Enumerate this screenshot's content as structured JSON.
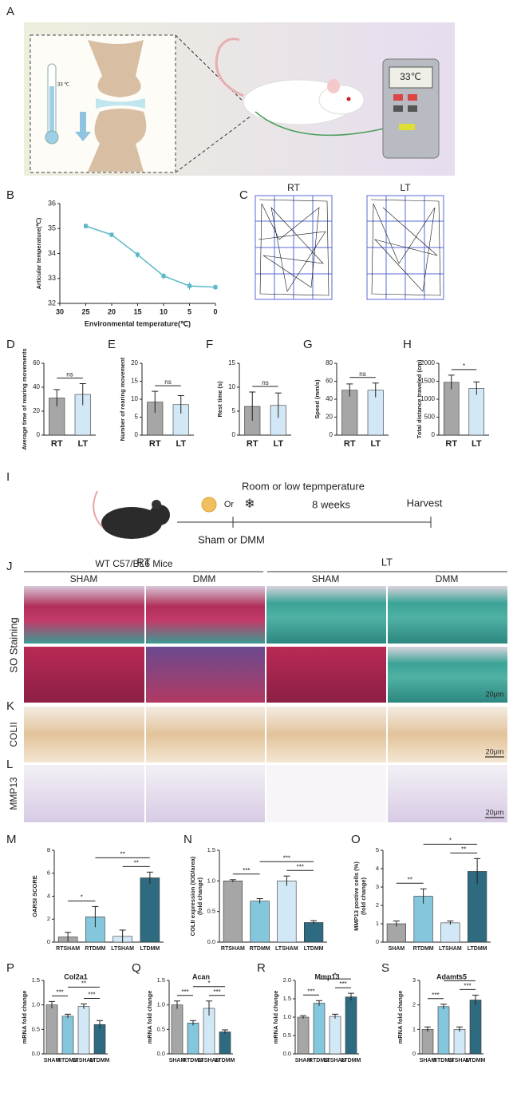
{
  "panel_labels": [
    "A",
    "B",
    "C",
    "D",
    "E",
    "F",
    "G",
    "H",
    "I",
    "J",
    "K",
    "L",
    "M",
    "N",
    "O",
    "P",
    "Q",
    "R",
    "S"
  ],
  "schematic": {
    "thermometer_reading": "33 ℃",
    "device_reading": "33℃"
  },
  "open_field": {
    "groups": [
      "RT",
      "LT"
    ]
  },
  "timeline": {
    "condition": "Room or low tepmperature",
    "or": "Or",
    "duration": "8 weeks",
    "endpoint": "Harvest",
    "surgery": "Sham or DMM",
    "mice": "WT C57/BL6 Mice"
  },
  "histology": {
    "groups": [
      "RT",
      "LT"
    ],
    "treatments": [
      "SHAM",
      "DMM",
      "SHAM",
      "DMM"
    ],
    "rows": [
      "SO Staining",
      "COLII",
      "MMP13"
    ],
    "scale_bar": "20μm"
  },
  "chart_data": [
    {
      "type": "line",
      "xlabel": "Environmental temperature(℃)",
      "ylabel": "Articular temperature(℃)",
      "x": [
        25,
        20,
        15,
        10,
        5,
        0
      ],
      "values": [
        35.1,
        34.75,
        33.95,
        33.1,
        32.7,
        32.65
      ],
      "errors": [
        0.1,
        0.1,
        0.12,
        0.12,
        0.15,
        0.1
      ],
      "color": "#5bb8c9",
      "xlim": [
        30,
        0
      ],
      "xticks": [
        30,
        25,
        20,
        15,
        10,
        5,
        0
      ],
      "ylim": [
        32,
        36
      ],
      "yticks": [
        32,
        33,
        34,
        35,
        36
      ]
    },
    {
      "type": "bar",
      "ylabel": "Average time of rearing movements",
      "categories": [
        "RT",
        "LT"
      ],
      "values": [
        31,
        34
      ],
      "errors": [
        7,
        9
      ],
      "colors": [
        "#a6a6a6",
        "#d3e8f6"
      ],
      "ylim": [
        0,
        60
      ],
      "yticks": [
        0,
        20,
        40,
        60
      ],
      "annotations": [
        {
          "label": "ns",
          "between": [
            "RT",
            "LT"
          ]
        }
      ]
    },
    {
      "type": "bar",
      "ylabel": "Number of rearing movement",
      "categories": [
        "RT",
        "LT"
      ],
      "values": [
        9.2,
        8.5
      ],
      "errors": [
        3,
        2.5
      ],
      "colors": [
        "#a6a6a6",
        "#d3e8f6"
      ],
      "ylim": [
        0,
        20
      ],
      "yticks": [
        0,
        5,
        10,
        15,
        20
      ],
      "annotations": [
        {
          "label": "ns",
          "between": [
            "RT",
            "LT"
          ]
        }
      ]
    },
    {
      "type": "bar",
      "ylabel": "Rest time (s)",
      "categories": [
        "RT",
        "LT"
      ],
      "values": [
        6,
        6.2
      ],
      "errors": [
        3,
        2.6
      ],
      "colors": [
        "#a6a6a6",
        "#d3e8f6"
      ],
      "ylim": [
        0,
        15
      ],
      "yticks": [
        0,
        5,
        10,
        15
      ],
      "annotations": [
        {
          "label": "ns",
          "between": [
            "RT",
            "LT"
          ]
        }
      ]
    },
    {
      "type": "bar",
      "ylabel": "Speed (mm/s)",
      "categories": [
        "RT",
        "LT"
      ],
      "values": [
        50,
        50
      ],
      "errors": [
        7,
        8
      ],
      "colors": [
        "#a6a6a6",
        "#d3e8f6"
      ],
      "ylim": [
        0,
        80
      ],
      "yticks": [
        0,
        20,
        40,
        60,
        80
      ],
      "annotations": [
        {
          "label": "ns",
          "between": [
            "RT",
            "LT"
          ]
        }
      ]
    },
    {
      "type": "bar",
      "ylabel": "Total distance traveled (cm)",
      "categories": [
        "RT",
        "LT"
      ],
      "values": [
        1470,
        1300
      ],
      "errors": [
        200,
        180
      ],
      "colors": [
        "#a6a6a6",
        "#d3e8f6"
      ],
      "ylim": [
        0,
        2000
      ],
      "yticks": [
        0,
        500,
        1000,
        1500,
        2000
      ],
      "annotations": [
        {
          "label": "*",
          "between": [
            "RT",
            "LT"
          ]
        }
      ]
    },
    {
      "type": "bar",
      "ylabel": "OARSI SCORE",
      "categories": [
        "RTSHAM",
        "RTDMM",
        "LTSHAM",
        "LTDMM"
      ],
      "values": [
        0.45,
        2.2,
        0.5,
        5.6
      ],
      "errors": [
        0.4,
        0.9,
        0.55,
        0.5
      ],
      "colors": [
        "#a6a6a6",
        "#84c6dc",
        "#d3e8f6",
        "#2f6b80"
      ],
      "ylim": [
        0,
        8
      ],
      "yticks": [
        0,
        2,
        4,
        6,
        8
      ],
      "annotations": [
        {
          "label": "*",
          "between": [
            "RTSHAM",
            "RTDMM"
          ]
        },
        {
          "label": "**",
          "between": [
            "LTSHAM",
            "LTDMM"
          ]
        },
        {
          "label": "**",
          "between": [
            "RTDMM",
            "LTDMM"
          ]
        }
      ]
    },
    {
      "type": "bar",
      "ylabel": [
        "COLII expression (IOD/area)",
        "(fold change)"
      ],
      "categories": [
        "RTSHAM",
        "RTDMM",
        "LTSHAM",
        "LTDMM"
      ],
      "values": [
        1.0,
        0.67,
        1.0,
        0.32
      ],
      "errors": [
        0.02,
        0.04,
        0.08,
        0.03
      ],
      "colors": [
        "#a6a6a6",
        "#84c6dc",
        "#d3e8f6",
        "#2f6b80"
      ],
      "ylim": [
        0,
        1.5
      ],
      "yticks": [
        {
          "value": 0,
          "label": "0.0"
        },
        {
          "value": 0.5,
          "label": "0.5"
        },
        {
          "value": 1,
          "label": "1.0"
        },
        {
          "value": 1.5,
          "label": "1.5"
        }
      ],
      "annotations": [
        {
          "label": "***",
          "between": [
            "RTSHAM",
            "RTDMM"
          ]
        },
        {
          "label": "***",
          "between": [
            "LTSHAM",
            "LTDMM"
          ]
        },
        {
          "label": "***",
          "between": [
            "RTDMM",
            "LTDMM"
          ]
        }
      ]
    },
    {
      "type": "bar",
      "ylabel": [
        "MMP13 postive cells (%)",
        "(fold change)"
      ],
      "categories": [
        "SHAM",
        "RTDMM",
        "LTSHAM",
        "LTDMM"
      ],
      "values": [
        1.0,
        2.5,
        1.05,
        3.85
      ],
      "errors": [
        0.15,
        0.4,
        0.1,
        0.7
      ],
      "colors": [
        "#a6a6a6",
        "#84c6dc",
        "#d3e8f6",
        "#2f6b80"
      ],
      "ylim": [
        0,
        5
      ],
      "yticks": [
        0,
        1,
        2,
        3,
        4,
        5
      ],
      "annotations": [
        {
          "label": "**",
          "between": [
            "SHAM",
            "RTDMM"
          ]
        },
        {
          "label": "**",
          "between": [
            "LTSHAM",
            "LTDMM"
          ]
        },
        {
          "label": "*",
          "between": [
            "RTDMM",
            "LTDMM"
          ]
        }
      ]
    },
    {
      "type": "bar",
      "title": "Col2a1",
      "ylabel": "mRNA fold change",
      "categories": [
        "SHAM",
        "RTDMM",
        "LTSHAM",
        "LTDMM"
      ],
      "values": [
        1.0,
        0.77,
        0.97,
        0.6
      ],
      "errors": [
        0.07,
        0.04,
        0.05,
        0.08
      ],
      "colors": [
        "#a6a6a6",
        "#84c6dc",
        "#d3e8f6",
        "#2f6b80"
      ],
      "ylim": [
        0,
        1.5
      ],
      "yticks": [
        {
          "value": 0,
          "label": "0.0"
        },
        {
          "value": 0.5,
          "label": "0.5"
        },
        {
          "value": 1,
          "label": "1.0"
        },
        {
          "value": 1.5,
          "label": "1.5"
        }
      ],
      "annotations": [
        {
          "label": "***",
          "between": [
            "SHAM",
            "RTDMM"
          ]
        },
        {
          "label": "***",
          "between": [
            "LTSHAM",
            "LTDMM"
          ]
        },
        {
          "label": "**",
          "between": [
            "RTDMM",
            "LTDMM"
          ]
        }
      ]
    },
    {
      "type": "bar",
      "title": "Acan",
      "ylabel": "mRNA fold change",
      "categories": [
        "SHAM",
        "RTDMM",
        "LTSHAM",
        "LTDMM"
      ],
      "values": [
        1.0,
        0.63,
        0.93,
        0.45
      ],
      "errors": [
        0.08,
        0.05,
        0.15,
        0.04
      ],
      "colors": [
        "#a6a6a6",
        "#84c6dc",
        "#d3e8f6",
        "#2f6b80"
      ],
      "ylim": [
        0,
        1.5
      ],
      "yticks": [
        {
          "value": 0,
          "label": "0.0"
        },
        {
          "value": 0.5,
          "label": "0.5"
        },
        {
          "value": 1,
          "label": "1.0"
        },
        {
          "value": 1.5,
          "label": "1.5"
        }
      ],
      "annotations": [
        {
          "label": "***",
          "between": [
            "SHAM",
            "RTDMM"
          ]
        },
        {
          "label": "***",
          "between": [
            "LTSHAM",
            "LTDMM"
          ]
        },
        {
          "label": "*",
          "between": [
            "RTDMM",
            "LTDMM"
          ]
        }
      ]
    },
    {
      "type": "bar",
      "title": "Mmp13",
      "ylabel": "mRNA fold change",
      "categories": [
        "SHAM",
        "RTDMM",
        "LTSHAM",
        "LTDMM"
      ],
      "values": [
        1.0,
        1.38,
        1.02,
        1.55
      ],
      "errors": [
        0.04,
        0.07,
        0.06,
        0.1
      ],
      "colors": [
        "#a6a6a6",
        "#84c6dc",
        "#d3e8f6",
        "#2f6b80"
      ],
      "ylim": [
        0,
        2
      ],
      "yticks": [
        {
          "value": 0,
          "label": "0.0"
        },
        {
          "value": 0.5,
          "label": "0.5"
        },
        {
          "value": 1,
          "label": "1.0"
        },
        {
          "value": 1.5,
          "label": "1.5"
        },
        {
          "value": 2,
          "label": "2.0"
        }
      ],
      "annotations": [
        {
          "label": "***",
          "between": [
            "SHAM",
            "RTDMM"
          ]
        },
        {
          "label": "***",
          "between": [
            "LTSHAM",
            "LTDMM"
          ]
        },
        {
          "label": "*",
          "between": [
            "RTDMM",
            "LTDMM"
          ]
        }
      ]
    },
    {
      "type": "bar",
      "title": "Adamts5",
      "ylabel": "mRNA fold change",
      "categories": [
        "SHAM",
        "RTDMM",
        "LTSHAM",
        "LTDMM"
      ],
      "values": [
        1.0,
        1.93,
        1.0,
        2.2
      ],
      "errors": [
        0.1,
        0.1,
        0.1,
        0.2
      ],
      "colors": [
        "#a6a6a6",
        "#84c6dc",
        "#d3e8f6",
        "#2f6b80"
      ],
      "ylim": [
        0,
        3
      ],
      "yticks": [
        0,
        1,
        2,
        3
      ],
      "annotations": [
        {
          "label": "***",
          "between": [
            "SHAM",
            "RTDMM"
          ]
        },
        {
          "label": "***",
          "between": [
            "LTSHAM",
            "LTDMM"
          ]
        },
        {
          "label": "*",
          "between": [
            "RTDMM",
            "LTDMM"
          ]
        }
      ]
    }
  ]
}
